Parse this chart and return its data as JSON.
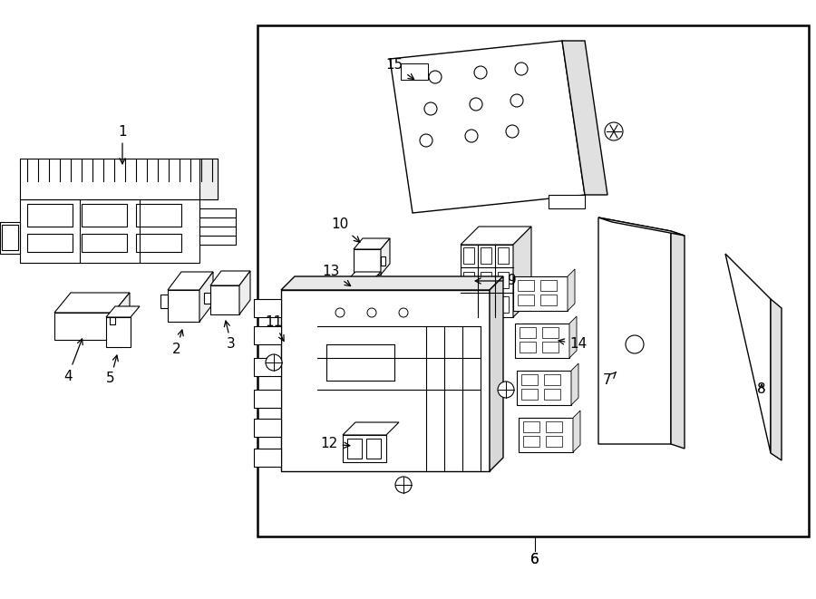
{
  "bg_color": "#ffffff",
  "lc": "#000000",
  "lw": 0.8,
  "fig_width": 9.0,
  "fig_height": 6.61,
  "dpi": 100
}
